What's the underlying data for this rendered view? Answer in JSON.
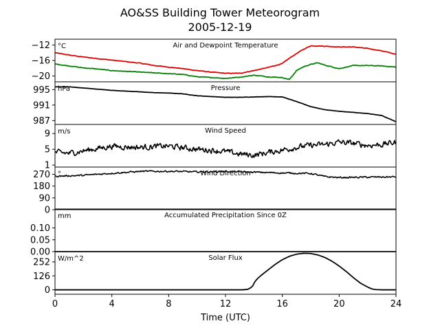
{
  "figure": {
    "title_line1": "AO&SS Building Tower Meteorogram",
    "title_line2": "2005-12-19",
    "xlabel": "Time (UTC)"
  },
  "chart_data": {
    "type": "line",
    "x_range": [
      0,
      24
    ],
    "x_ticks": [
      0,
      4,
      8,
      12,
      16,
      20,
      24
    ],
    "x_tick_labels": [
      "0",
      "4",
      "8",
      "12",
      "16",
      "20",
      "24"
    ],
    "x_label": "Time (UTC)",
    "grid": false,
    "panels": [
      {
        "title": "Air and Dewpoint Temperature",
        "unit": "°C",
        "ylim": [
          -21.5,
          -10.5
        ],
        "yticks": [
          -12,
          -16,
          -20
        ],
        "ytick_labels": [
          "−12",
          "−16",
          "−20"
        ],
        "series": [
          {
            "color": "#e00000",
            "noise": 0.12,
            "x": [
              0,
              1,
              2,
              3,
              4,
              5,
              6,
              7,
              8,
              9,
              10,
              11,
              12,
              13,
              14,
              15,
              16,
              16.5,
              17,
              17.5,
              18,
              19,
              20,
              21,
              22,
              23,
              24
            ],
            "y": [
              -14.0,
              -14.6,
              -15.1,
              -15.5,
              -15.9,
              -16.3,
              -16.7,
              -17.3,
              -17.7,
              -18.1,
              -18.6,
              -19.0,
              -19.3,
              -19.3,
              -18.6,
              -17.8,
              -16.8,
              -15.4,
              -14.2,
              -13.1,
              -12.2,
              -12.3,
              -12.5,
              -12.5,
              -12.9,
              -13.5,
              -14.4
            ]
          },
          {
            "color": "#008000",
            "noise": 0.12,
            "x": [
              0,
              1,
              2,
              3,
              4,
              5,
              6,
              7,
              8,
              9,
              10,
              11,
              12,
              13,
              14,
              15,
              16,
              16.5,
              17,
              17.5,
              18,
              18.5,
              19,
              20,
              21,
              22,
              23,
              24
            ],
            "y": [
              -16.9,
              -17.4,
              -17.9,
              -18.2,
              -18.6,
              -18.8,
              -19.0,
              -19.2,
              -19.4,
              -19.6,
              -20.2,
              -20.4,
              -20.6,
              -20.3,
              -19.8,
              -20.2,
              -20.4,
              -20.9,
              -18.6,
              -17.6,
              -17.0,
              -16.6,
              -17.2,
              -18.1,
              -17.3,
              -17.3,
              -17.4,
              -17.7
            ]
          }
        ]
      },
      {
        "title": "Pressure",
        "unit": "hPa",
        "ylim": [
          986,
          997
        ],
        "yticks": [
          995,
          991,
          987
        ],
        "ytick_labels": [
          "995",
          "991",
          "987"
        ],
        "series": [
          {
            "color": "#000000",
            "noise": 0.04,
            "x": [
              0,
              1,
              2,
              3,
              4,
              5,
              6,
              7,
              8,
              9,
              10,
              11,
              12,
              13,
              14,
              15,
              16,
              17,
              18,
              19,
              20,
              21,
              22,
              23,
              24
            ],
            "y": [
              995.7,
              995.7,
              995.4,
              995.1,
              994.8,
              994.6,
              994.4,
              994.2,
              994.1,
              993.9,
              993.4,
              993.2,
              993.0,
              993.0,
              993.1,
              993.2,
              993.1,
              991.9,
              990.6,
              989.8,
              989.4,
              989.1,
              988.8,
              988.3,
              986.7
            ]
          }
        ]
      },
      {
        "title": "Wind Speed",
        "unit": "m/s",
        "ylim": [
          0.5,
          11.3
        ],
        "yticks": [
          9,
          5,
          1
        ],
        "ytick_labels": [
          "9",
          "5",
          "1"
        ],
        "series": [
          {
            "color": "#000000",
            "noise": 1.1,
            "x": [
              0,
              1,
              2,
              3,
              4,
              5,
              6,
              7,
              8,
              9,
              10,
              11,
              12,
              13,
              14,
              15,
              16,
              17,
              18,
              19,
              20,
              21,
              22,
              23,
              24
            ],
            "y": [
              4.2,
              4.0,
              4.6,
              5.2,
              5.8,
              5.6,
              5.5,
              5.7,
              5.8,
              5.4,
              5.0,
              4.8,
              4.4,
              3.8,
              3.5,
              4.2,
              4.8,
              5.5,
              6.0,
              6.2,
              6.8,
              6.5,
              6.0,
              6.2,
              6.8
            ]
          }
        ]
      },
      {
        "title": "Wind Direction",
        "unit": "°",
        "ylim": [
          0,
          325
        ],
        "yticks": [
          270,
          180,
          90,
          0
        ],
        "ytick_labels": [
          "270",
          "180",
          "90",
          "0"
        ],
        "series": [
          {
            "color": "#000000",
            "noise": 9,
            "x": [
              0,
              2,
              4,
              6,
              8,
              10,
              12,
              14,
              16,
              18,
              19,
              20,
              22,
              24
            ],
            "y": [
              255,
              262,
              278,
              292,
              293,
              288,
              292,
              286,
              280,
              276,
              252,
              245,
              248,
              250
            ]
          }
        ]
      },
      {
        "title": "Accumulated Precipitation Since 0Z",
        "unit": "mm",
        "ylim": [
          0,
          0.18
        ],
        "yticks": [
          0.1,
          0.05,
          0.0
        ],
        "ytick_labels": [
          "0.10",
          "0.05",
          "0.00"
        ],
        "series": [
          {
            "color": "#000000",
            "noise": 0,
            "x": [
              0,
              24
            ],
            "y": [
              0,
              0
            ]
          }
        ]
      },
      {
        "title": "Solar Flux",
        "unit": "W/m^2",
        "ylim": [
          -40,
          345
        ],
        "yticks": [
          252,
          126,
          0
        ],
        "ytick_labels": [
          "252",
          "126",
          "0"
        ],
        "series": [
          {
            "color": "#000000",
            "noise": 0,
            "x": [
              0,
              13.2,
              13.6,
              13.9,
              14.0,
              14.2,
              14.5,
              15,
              15.5,
              16,
              16.5,
              17,
              17.5,
              18,
              18.5,
              19,
              19.5,
              20,
              20.5,
              21,
              21.5,
              22,
              22.3,
              22.6,
              23,
              24
            ],
            "y": [
              0,
              0,
              5,
              30,
              60,
              95,
              130,
              180,
              230,
              272,
              303,
              322,
              330,
              328,
              315,
              292,
              258,
              215,
              165,
              110,
              60,
              25,
              8,
              2,
              0,
              0
            ]
          }
        ]
      }
    ]
  }
}
